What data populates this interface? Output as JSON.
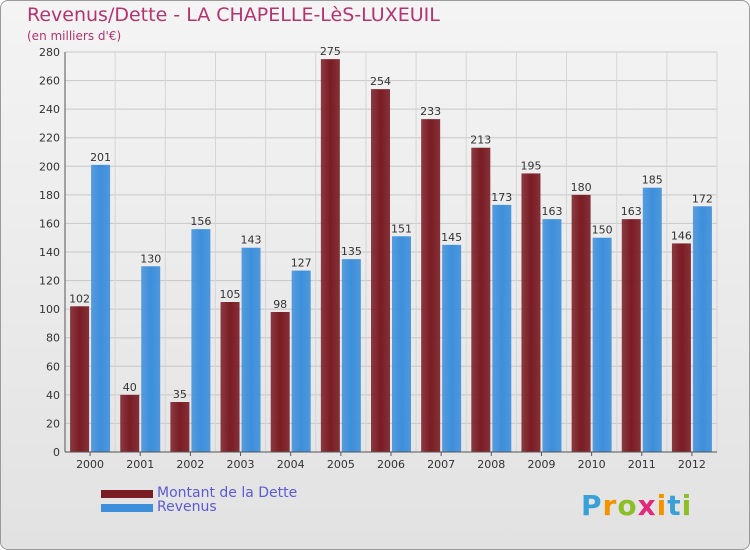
{
  "chart_data": {
    "type": "bar",
    "title": "Revenus/Dette - LA CHAPELLE-LèS-LUXEUIL",
    "subtitle": "(en milliers d'€)",
    "categories": [
      "2000",
      "2001",
      "2002",
      "2003",
      "2004",
      "2005",
      "2006",
      "2007",
      "2008",
      "2009",
      "2010",
      "2011",
      "2012"
    ],
    "series": [
      {
        "name": "Montant de la Dette",
        "color": "#7a1c24",
        "values": [
          102,
          40,
          35,
          105,
          98,
          275,
          254,
          233,
          213,
          195,
          180,
          163,
          146
        ]
      },
      {
        "name": "Revenus",
        "color": "#3d8fdb",
        "values": [
          201,
          130,
          156,
          143,
          127,
          135,
          151,
          145,
          173,
          163,
          150,
          185,
          172
        ]
      }
    ],
    "ylim": [
      0,
      280
    ],
    "yticks": [
      0,
      20,
      40,
      60,
      80,
      100,
      120,
      140,
      160,
      180,
      200,
      220,
      240,
      260,
      280
    ],
    "grid": true,
    "legend_position": "bottom-left"
  },
  "logo": {
    "letters": [
      {
        "ch": "P",
        "color": "#3aa0d8"
      },
      {
        "ch": "r",
        "color": "#f29400"
      },
      {
        "ch": "o",
        "color": "#8cbf26"
      },
      {
        "ch": "x",
        "color": "#e2287a"
      },
      {
        "ch": "i",
        "color": "#f29400"
      },
      {
        "ch": "t",
        "color": "#3aa0d8"
      },
      {
        "ch": "i",
        "color": "#8cbf26"
      }
    ]
  }
}
